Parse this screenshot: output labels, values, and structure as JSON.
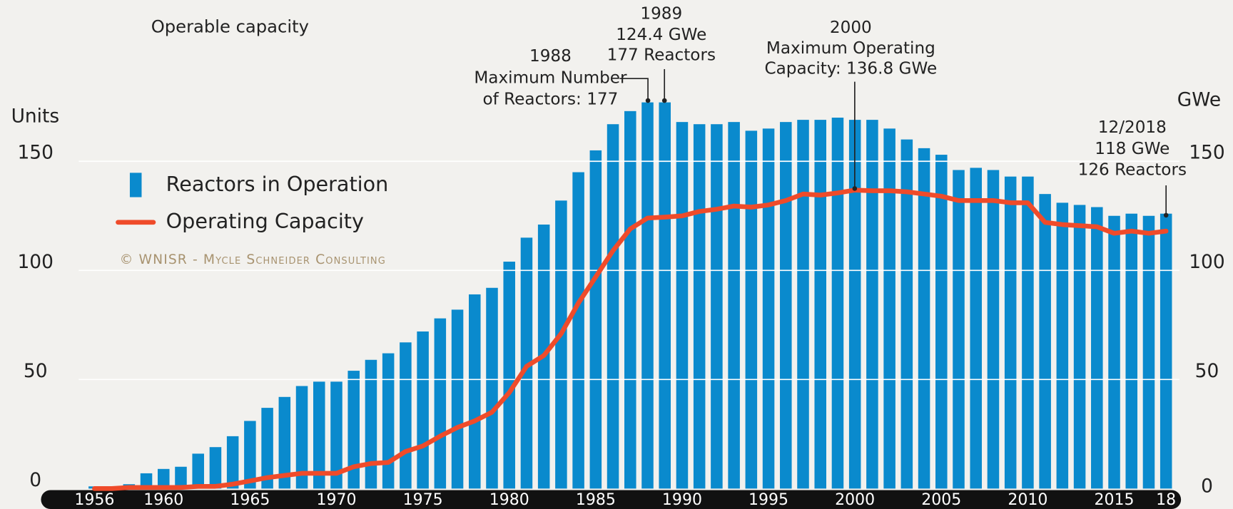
{
  "chart_data": {
    "type": "bar",
    "title": "Operable capacity",
    "ylabel": "Units",
    "y2label": "GWe",
    "watermark": "© WNISR - Mycle Schneider Consulting",
    "categories": [
      "1956",
      null,
      null,
      null,
      "1960",
      null,
      null,
      null,
      null,
      "1965",
      null,
      null,
      null,
      null,
      "1970",
      null,
      null,
      null,
      null,
      "1975",
      null,
      null,
      null,
      null,
      "1980",
      null,
      null,
      null,
      null,
      "1985",
      null,
      null,
      null,
      null,
      "1990",
      null,
      null,
      null,
      null,
      "1995",
      null,
      null,
      null,
      null,
      "2000",
      null,
      null,
      null,
      null,
      "2005",
      null,
      null,
      null,
      null,
      "2010",
      null,
      null,
      null,
      null,
      "2015",
      null,
      null,
      "18"
    ],
    "series": [
      {
        "name": "Reactors in Operation",
        "type": "bar",
        "color": "#0a8acd",
        "values": [
          1,
          1,
          2,
          7,
          9,
          10,
          16,
          19,
          24,
          31,
          37,
          42,
          47,
          49,
          49,
          54,
          59,
          62,
          67,
          72,
          78,
          82,
          89,
          92,
          104,
          115,
          121,
          132,
          145,
          155,
          167,
          173,
          177,
          177,
          168,
          167,
          167,
          168,
          164,
          165,
          168,
          169,
          169,
          170,
          169,
          169,
          165,
          160,
          156,
          153,
          146,
          147,
          146,
          143,
          143,
          135,
          131,
          130,
          129,
          125,
          126,
          125,
          126
        ]
      },
      {
        "name": "Operating Capacity",
        "type": "line",
        "axis": "y2",
        "color": "#ef4b2a",
        "values": [
          0,
          0,
          0.5,
          0.5,
          0.5,
          0.5,
          1,
          1,
          2,
          3.5,
          5,
          6,
          7,
          7,
          7,
          10,
          11.5,
          12,
          17,
          19.5,
          24,
          28,
          31,
          35,
          44,
          56,
          61,
          71,
          85,
          97,
          109,
          119,
          124,
          124.4,
          125,
          127,
          128,
          129.5,
          129,
          130,
          132,
          135,
          134.5,
          135.5,
          136.8,
          136.5,
          136.5,
          136,
          135,
          134,
          132,
          132,
          132,
          131,
          131,
          122,
          121,
          120.5,
          120,
          117,
          118,
          117,
          118
        ]
      }
    ],
    "ylim": [
      0,
      180
    ],
    "yticks": [
      0,
      50,
      100,
      150
    ],
    "y2lim": [
      0,
      180
    ],
    "y2ticks": [
      0,
      50,
      100,
      150
    ],
    "grid": true,
    "annotations": [
      {
        "lines": [
          "1988",
          "Maximum Number",
          "of Reactors: 177"
        ]
      },
      {
        "lines": [
          "1989",
          "124.4 GWe",
          "177 Reactors"
        ]
      },
      {
        "lines": [
          "2000",
          "Maximum Operating",
          "Capacity: 136.8 GWe"
        ]
      },
      {
        "lines": [
          "12/2018",
          "118 GWe",
          "126 Reactors"
        ]
      }
    ]
  }
}
